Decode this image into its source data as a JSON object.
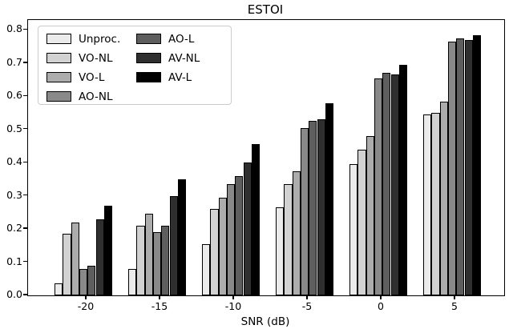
{
  "chart_data": {
    "type": "bar",
    "title": "ESTOI",
    "xlabel": "SNR (dB)",
    "ylabel": "",
    "categories": [
      -20,
      -15,
      -10,
      -5,
      0,
      5
    ],
    "xtick_labels": [
      "-20",
      "-15",
      "-10",
      "-5",
      "0",
      "5"
    ],
    "ytick_labels": [
      "0.0",
      "0.1",
      "0.2",
      "0.3",
      "0.4",
      "0.5",
      "0.6",
      "0.7",
      "0.8"
    ],
    "ylim": [
      0,
      0.83
    ],
    "grid": false,
    "legend_position": "upper-left",
    "legend_columns": 2,
    "series": [
      {
        "name": "Unproc.",
        "color": "#ebebeb",
        "values": [
          0.035,
          0.08,
          0.155,
          0.265,
          0.395,
          0.545
        ]
      },
      {
        "name": "VO-NL",
        "color": "#d2d2d2",
        "values": [
          0.185,
          0.21,
          0.26,
          0.335,
          0.44,
          0.55
        ]
      },
      {
        "name": "VO-L",
        "color": "#acacac",
        "values": [
          0.22,
          0.245,
          0.295,
          0.375,
          0.48,
          0.585
        ]
      },
      {
        "name": "AO-NL",
        "color": "#898989",
        "values": [
          0.08,
          0.19,
          0.335,
          0.505,
          0.655,
          0.765
        ]
      },
      {
        "name": "AO-L",
        "color": "#5e5e5e",
        "values": [
          0.09,
          0.21,
          0.36,
          0.525,
          0.67,
          0.775
        ]
      },
      {
        "name": "AV-NL",
        "color": "#2f2f2f",
        "values": [
          0.23,
          0.3,
          0.4,
          0.53,
          0.665,
          0.77
        ]
      },
      {
        "name": "AV-L",
        "color": "#000000",
        "values": [
          0.27,
          0.35,
          0.455,
          0.58,
          0.695,
          0.785
        ]
      }
    ]
  }
}
